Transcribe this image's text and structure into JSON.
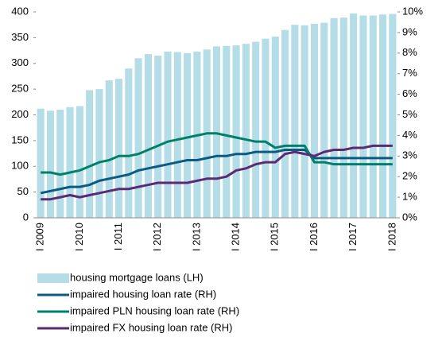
{
  "chart_data": {
    "type": "bar",
    "categories": [
      "I 2009",
      null,
      null,
      null,
      "I 2010",
      null,
      null,
      null,
      "I 2011",
      null,
      null,
      null,
      "I 2012",
      null,
      null,
      null,
      "I 2013",
      null,
      null,
      null,
      "I 2014",
      null,
      null,
      null,
      "I 2015",
      null,
      null,
      null,
      "I 2016",
      null,
      null,
      null,
      "I 2017",
      null,
      null,
      null,
      "I 2018"
    ],
    "ylim": [
      0,
      400
    ],
    "yticks": [
      0,
      50,
      100,
      150,
      200,
      250,
      300,
      350,
      400
    ],
    "y2lim": [
      0,
      10
    ],
    "y2ticks": [
      {
        "value": 0,
        "label": "0%"
      },
      {
        "value": 1,
        "label": "1%"
      },
      {
        "value": 2,
        "label": "2%"
      },
      {
        "value": 3,
        "label": "3%"
      },
      {
        "value": 4,
        "label": "4%"
      },
      {
        "value": 5,
        "label": "5%"
      },
      {
        "value": 6,
        "label": "6%"
      },
      {
        "value": 7,
        "label": "7%"
      },
      {
        "value": 8,
        "label": "8%"
      },
      {
        "value": 9,
        "label": "9%"
      },
      {
        "value": 10,
        "label": "10%"
      }
    ],
    "grid": false,
    "series": [
      {
        "name": "housing mortgage loans (LH)",
        "type": "bar",
        "color": "#b4dde8",
        "values": [
          212,
          208,
          210,
          215,
          217,
          248,
          250,
          267,
          270,
          290,
          310,
          318,
          315,
          323,
          322,
          320,
          323,
          327,
          333,
          334,
          335,
          338,
          342,
          348,
          352,
          365,
          375,
          374,
          377,
          379,
          388,
          389,
          397,
          393,
          393,
          395,
          396
        ]
      },
      {
        "name": "impaired housing loan rate (RH)",
        "type": "line",
        "axis": "y2",
        "color": "#0b5a82",
        "values": [
          1.2,
          1.3,
          1.4,
          1.5,
          1.5,
          1.6,
          1.8,
          1.9,
          2.0,
          2.1,
          2.3,
          2.4,
          2.5,
          2.6,
          2.7,
          2.8,
          2.8,
          2.9,
          3.0,
          3.0,
          3.1,
          3.1,
          3.2,
          3.2,
          3.2,
          3.3,
          3.3,
          3.3,
          2.9,
          2.9,
          2.9,
          2.9,
          2.9,
          2.9,
          2.9,
          2.9,
          2.9
        ]
      },
      {
        "name": "impaired PLN housing loan rate (RH)",
        "type": "line",
        "axis": "y2",
        "color": "#00806a",
        "values": [
          2.2,
          2.2,
          2.1,
          2.2,
          2.3,
          2.5,
          2.7,
          2.8,
          3.0,
          3.0,
          3.1,
          3.3,
          3.5,
          3.7,
          3.8,
          3.9,
          4.0,
          4.1,
          4.1,
          4.0,
          3.9,
          3.8,
          3.7,
          3.7,
          3.4,
          3.5,
          3.5,
          3.5,
          2.7,
          2.7,
          2.6,
          2.6,
          2.6,
          2.6,
          2.6,
          2.6,
          2.6
        ]
      },
      {
        "name": "impaired FX housing loan rate (RH)",
        "type": "line",
        "axis": "y2",
        "color": "#5b2a72",
        "values": [
          0.9,
          0.9,
          1.0,
          1.1,
          1.0,
          1.1,
          1.2,
          1.3,
          1.4,
          1.4,
          1.5,
          1.6,
          1.7,
          1.7,
          1.7,
          1.7,
          1.8,
          1.9,
          1.9,
          2.0,
          2.3,
          2.4,
          2.6,
          2.7,
          2.7,
          3.1,
          3.2,
          3.1,
          3.0,
          3.2,
          3.3,
          3.3,
          3.4,
          3.4,
          3.5,
          3.5,
          3.5
        ]
      }
    ]
  }
}
